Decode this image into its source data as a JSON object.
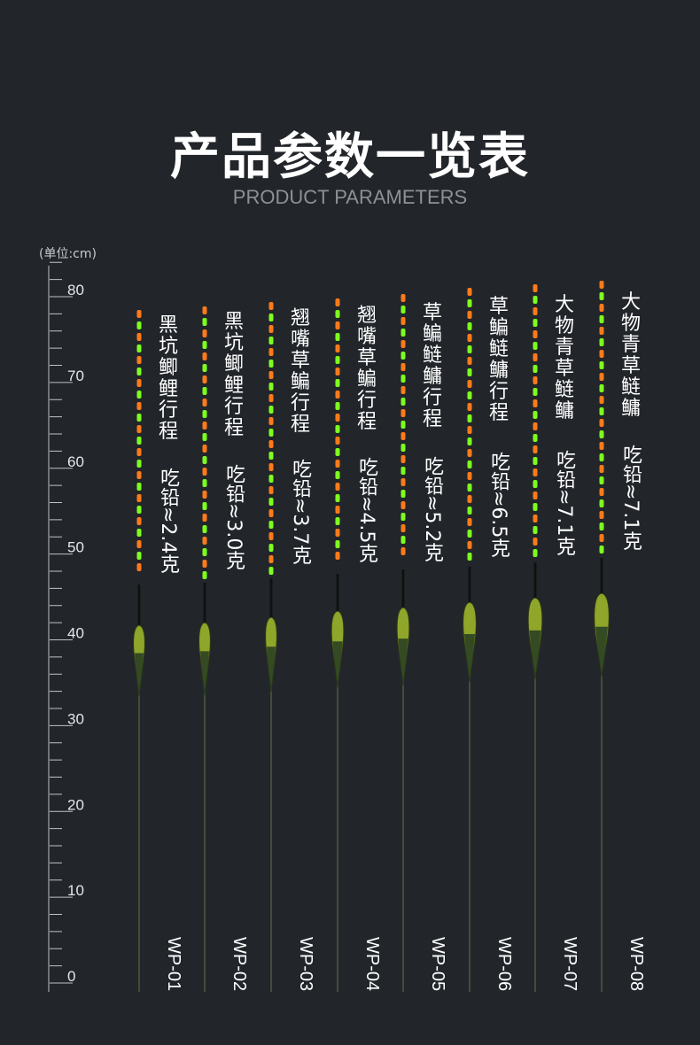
{
  "header": {
    "title": "产品参数一览表",
    "subtitle": "PRODUCT PARAMETERS",
    "unit": "(单位:cm)"
  },
  "ruler": {
    "labels": [
      "80",
      "70",
      "60",
      "50",
      "40",
      "30",
      "20",
      "10",
      "0"
    ]
  },
  "colors": {
    "background": "#22262b",
    "orange": "#ff7a1a",
    "green": "#7dff1e",
    "body": "#8fa62a"
  },
  "floats": [
    {
      "model": "WP-01",
      "fish": "黑坑鲫鲤行程",
      "lead": "吃铅≈2.4克"
    },
    {
      "model": "WP-02",
      "fish": "黑坑鲫鲤行程",
      "lead": "吃铅≈3.0克"
    },
    {
      "model": "WP-03",
      "fish": "翘嘴草鳊行程",
      "lead": "吃铅≈3.7克"
    },
    {
      "model": "WP-04",
      "fish": "翘嘴草鳊行程",
      "lead": "吃铅≈4.5克"
    },
    {
      "model": "WP-05",
      "fish": "草鳊鲢鳙行程",
      "lead": "吃铅≈5.2克"
    },
    {
      "model": "WP-06",
      "fish": "草鳊鲢鳙行程",
      "lead": "吃铅≈6.5克"
    },
    {
      "model": "WP-07",
      "fish": "大物青草鲢鳙",
      "lead": "吃铅≈7.1克"
    },
    {
      "model": "WP-08",
      "fish": "大物青草鲢鳙",
      "lead": "吃铅≈7.1克"
    }
  ]
}
